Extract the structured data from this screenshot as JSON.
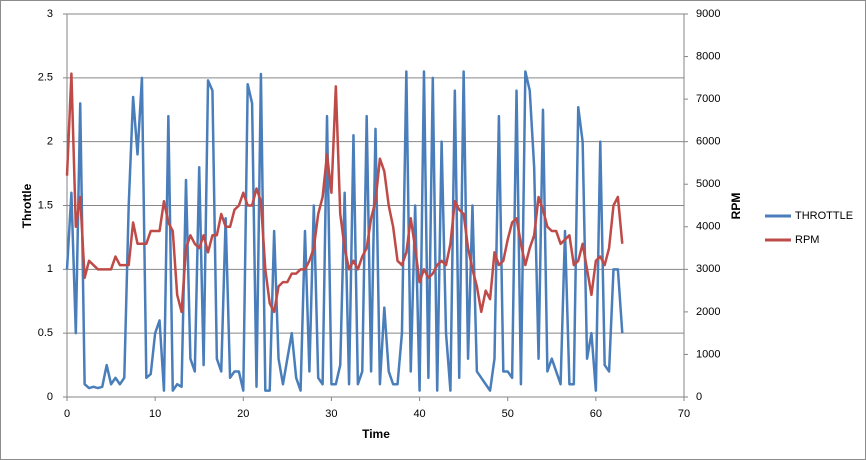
{
  "chart_data": {
    "type": "line",
    "x_label": "Time",
    "y_label": "Throttle",
    "y2_label": "RPM",
    "x": [
      0,
      0.5,
      1,
      1.5,
      2,
      2.5,
      3,
      3.5,
      4,
      4.5,
      5,
      5.5,
      6,
      6.5,
      7,
      7.5,
      8,
      8.5,
      9,
      9.5,
      10,
      10.5,
      11,
      11.5,
      12,
      12.5,
      13,
      13.5,
      14,
      14.5,
      15,
      15.5,
      16,
      16.5,
      17,
      17.5,
      18,
      18.5,
      19,
      19.5,
      20,
      20.5,
      21,
      21.5,
      22,
      22.5,
      23,
      23.5,
      24,
      24.5,
      25,
      25.5,
      26,
      26.5,
      27,
      27.5,
      28,
      28.5,
      29,
      29.5,
      30,
      30.5,
      31,
      31.5,
      32,
      32.5,
      33,
      33.5,
      34,
      34.5,
      35,
      35.5,
      36,
      36.5,
      37,
      37.5,
      38,
      38.5,
      39,
      39.5,
      40,
      40.5,
      41,
      41.5,
      42,
      42.5,
      43,
      43.5,
      44,
      44.5,
      45,
      45.5,
      46,
      46.5,
      47,
      47.5,
      48,
      48.5,
      49,
      49.5,
      50,
      50.5,
      51,
      51.5,
      52,
      52.5,
      53,
      53.5,
      54,
      54.5,
      55,
      55.5,
      56,
      56.5,
      57,
      57.5,
      58,
      58.5,
      59,
      59.5,
      60,
      60.5,
      61,
      61.5,
      62,
      62.5,
      63
    ],
    "series": [
      {
        "name": "THROTTLE",
        "color": "#4a7ebb",
        "values": [
          1.0,
          1.6,
          0.5,
          2.3,
          0.1,
          0.07,
          0.08,
          0.07,
          0.08,
          0.25,
          0.1,
          0.15,
          0.1,
          0.15,
          1.5,
          2.35,
          1.9,
          2.5,
          0.15,
          0.18,
          0.5,
          0.6,
          0.05,
          2.2,
          0.05,
          0.1,
          0.08,
          1.7,
          0.3,
          0.2,
          1.8,
          0.25,
          2.48,
          2.4,
          0.3,
          0.2,
          1.4,
          0.15,
          0.2,
          0.2,
          0.05,
          2.45,
          2.3,
          0.08,
          2.53,
          0.05,
          0.05,
          1.3,
          0.3,
          0.1,
          0.3,
          0.5,
          0.15,
          0.05,
          1.3,
          0.2,
          1.5,
          0.15,
          0.1,
          2.2,
          0.1,
          0.1,
          0.25,
          1.6,
          0.1,
          2.05,
          0.1,
          0.2,
          2.2,
          0.2,
          2.1,
          0.1,
          0.7,
          0.2,
          0.1,
          0.1,
          0.5,
          2.55,
          0.2,
          1.5,
          0.05,
          2.55,
          0.15,
          2.5,
          0.05,
          2.0,
          0.5,
          0.05,
          2.4,
          0.15,
          2.55,
          0.3,
          1.5,
          0.2,
          0.15,
          0.1,
          0.05,
          0.3,
          2.2,
          0.2,
          0.2,
          0.15,
          2.4,
          0.1,
          2.55,
          2.4,
          1.8,
          0.3,
          2.25,
          0.2,
          0.3,
          0.2,
          0.1,
          1.3,
          0.1,
          0.1,
          2.27,
          2.0,
          0.3,
          0.5,
          0.05,
          2.0,
          0.25,
          0.2,
          1.0,
          1.0,
          0.5
        ]
      },
      {
        "name": "RPM",
        "color": "#be4b48",
        "axis": "y2",
        "values": [
          5200,
          7600,
          4000,
          4700,
          2800,
          3200,
          3100,
          3000,
          3000,
          3000,
          3000,
          3300,
          3100,
          3100,
          3100,
          4100,
          3600,
          3600,
          3600,
          3900,
          3900,
          3900,
          4600,
          4100,
          3900,
          2400,
          2000,
          3500,
          3800,
          3600,
          3500,
          3800,
          3400,
          3800,
          3800,
          4300,
          4000,
          4000,
          4400,
          4500,
          4800,
          4500,
          4500,
          4900,
          4600,
          3000,
          2200,
          2000,
          2600,
          2700,
          2700,
          2900,
          2900,
          3000,
          3000,
          3200,
          3500,
          4300,
          4700,
          5700,
          4800,
          7300,
          4300,
          3500,
          3000,
          3200,
          3000,
          3300,
          3500,
          4200,
          4600,
          5600,
          5300,
          4500,
          4000,
          3200,
          3100,
          3400,
          4200,
          3500,
          2700,
          3000,
          2800,
          2900,
          3100,
          3200,
          3100,
          3600,
          4600,
          4400,
          4300,
          3500,
          3000,
          2600,
          2000,
          2500,
          2300,
          3400,
          3100,
          3200,
          3700,
          4100,
          4200,
          3600,
          3100,
          3500,
          3800,
          4700,
          4400,
          4000,
          3900,
          3900,
          3600,
          3700,
          3800,
          3100,
          3200,
          3600,
          3000,
          2400,
          3200,
          3300,
          3100,
          3500,
          4500,
          4700,
          3600
        ]
      }
    ],
    "xlim": [
      0,
      70
    ],
    "xticks": [
      0,
      10,
      20,
      30,
      40,
      50,
      60,
      70
    ],
    "ylim": [
      0,
      3
    ],
    "yticks": [
      0,
      0.5,
      1,
      1.5,
      2,
      2.5,
      3
    ],
    "y2lim": [
      0,
      9000
    ],
    "y2ticks": [
      0,
      1000,
      2000,
      3000,
      4000,
      5000,
      6000,
      7000,
      8000,
      9000
    ],
    "grid": true,
    "legend": "right"
  }
}
